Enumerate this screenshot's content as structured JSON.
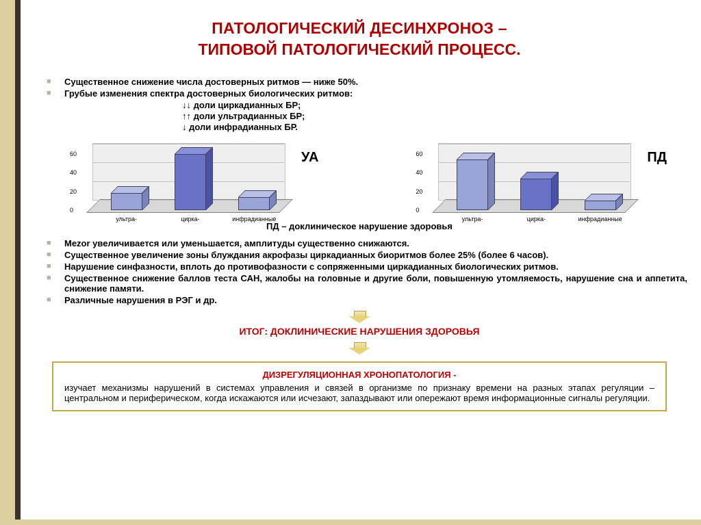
{
  "title_line1": "ПАТОЛОГИЧЕСКИЙ ДЕСИНХРОНОЗ –",
  "title_line2": "ТИПОВОЙ ПАТОЛОГИЧЕСКИЙ ПРОЦЕСС.",
  "bullets_top": [
    "Существенное снижение числа достоверных ритмов — ниже 50%.",
    "Грубые изменения спектра достоверных биологических ритмов:"
  ],
  "sub_lines": [
    "↓↓ доли циркадианных БР;",
    "↑↑ доли ультрадианных БР;",
    "↓ доли инфрадианных БР."
  ],
  "caption_between": "ПД – доклиническое нарушение здоровья",
  "chart_left": {
    "type": "bar3d",
    "label": "УА",
    "categories": [
      "ультра-",
      "цирка-",
      "инфрадианные"
    ],
    "values": [
      18,
      64,
      14
    ],
    "bar_colors": [
      "#9aa4d8",
      "#6a72c8",
      "#9aa4d8"
    ],
    "bar_side_colors": [
      "#7a84b8",
      "#4a52a8",
      "#7a84b8"
    ],
    "bar_top_colors": [
      "#b8c0e6",
      "#8890d8",
      "#b8c0e6"
    ],
    "ylim": [
      0,
      60
    ],
    "ytick_step": 20,
    "background": "#efefef",
    "floor": "#d8d8d8",
    "border": "#808080",
    "label_fontsize": 20,
    "tick_fontsize": 9
  },
  "chart_right": {
    "type": "bar3d",
    "label": "ПД",
    "categories": [
      "ультра-",
      "цирка-",
      "инфрадианные"
    ],
    "values": [
      54,
      34,
      10
    ],
    "bar_colors": [
      "#9aa4d8",
      "#6a72c8",
      "#9aa4d8"
    ],
    "bar_side_colors": [
      "#7a84b8",
      "#4a52a8",
      "#7a84b8"
    ],
    "bar_top_colors": [
      "#b8c0e6",
      "#8890d8",
      "#b8c0e6"
    ],
    "ylim": [
      0,
      60
    ],
    "ytick_step": 20,
    "background": "#efefef",
    "floor": "#d8d8d8",
    "border": "#808080",
    "label_fontsize": 20,
    "tick_fontsize": 9
  },
  "bullets_bottom": [
    "Mezor увеличивается или уменьшается, амплитуды существенно снижаются.",
    "Существенное увеличение зоны блуждания акрофазы циркадианных биоритмов более 25% (более 6 часов).",
    "Нарушение синфазности, вплоть до противофазности с сопряженными циркадианных биологических ритмов.",
    "Существенное снижение баллов теста САН, жалобы на головные и другие боли, повышенную утомляемость, нарушение сна и аппетита, снижение памяти.",
    "Различные нарушения в РЭГ и др."
  ],
  "result_line": "ИТОГ: ДОКЛИНИЧЕСКИЕ НАРУШЕНИЯ ЗДОРОВЬЯ",
  "box_title": "ДИЗРЕГУЛЯЦИОННАЯ ХРОНОПАТОЛОГИЯ -",
  "box_body": "изучает механизмы нарушений в системах управления и связей в организме по признаку времени на разных этапах регуляции – центральном и периферическом, когда искажаются или исчезают, запаздывают или опережают время информационные сигналы регуляции.",
  "colors": {
    "title": "#b00000",
    "bullet_marker": "#b5b5a0",
    "box_border": "#c5a84a",
    "decor_band": "#dccfa0",
    "decor_stripe": "#3a332c"
  }
}
